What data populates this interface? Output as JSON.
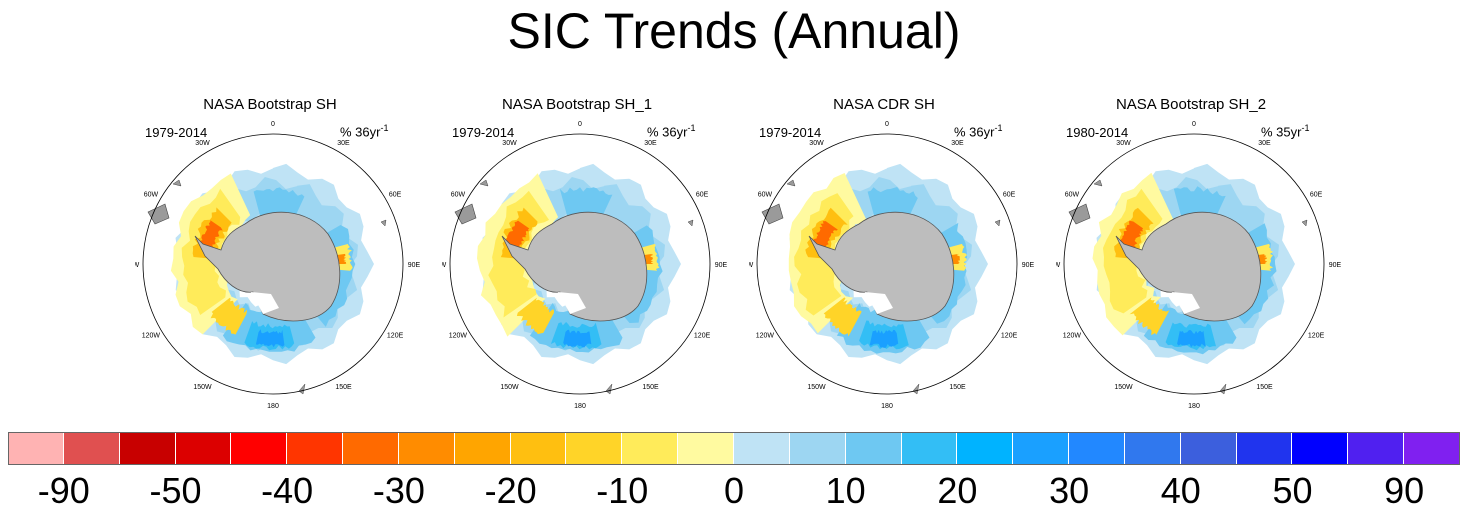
{
  "title": "SIC Trends (Annual)",
  "chart_data": {
    "type": "heatmap",
    "title": "SIC Trends (Annual)",
    "projection": "South polar stereographic",
    "panels": [
      {
        "title": "NASA Bootstrap SH",
        "period": "1979-2014",
        "units_prefix": "% 36yr",
        "units_exp": "-1"
      },
      {
        "title": "NASA Bootstrap SH_1",
        "period": "1979-2014",
        "units_prefix": "% 36yr",
        "units_exp": "-1"
      },
      {
        "title": "NASA CDR SH",
        "period": "1979-2014",
        "units_prefix": "% 36yr",
        "units_exp": "-1"
      },
      {
        "title": "NASA Bootstrap SH_2",
        "period": "1980-2014",
        "units_prefix": "% 35yr",
        "units_exp": "-1"
      }
    ],
    "longitude_labels": [
      "0",
      "30E",
      "60E",
      "90E",
      "120E",
      "150E",
      "180",
      "150W",
      "120W",
      "90W",
      "60W",
      "30W"
    ],
    "colorbar": {
      "colors": [
        "#ffb3b3",
        "#e05050",
        "#c80000",
        "#dc0000",
        "#ff0000",
        "#ff3500",
        "#ff6a00",
        "#ff8c00",
        "#ffa500",
        "#ffbf10",
        "#ffd428",
        "#ffeb5a",
        "#fffaa0",
        "#bfe3f5",
        "#9dd6f2",
        "#6ec8f2",
        "#33bef5",
        "#00b3ff",
        "#1aa0ff",
        "#2288ff",
        "#3078ee",
        "#3c5fdd",
        "#2034ee",
        "#0000ff",
        "#5020f0",
        "#8020f0"
      ],
      "labels": [
        "-90",
        "-50",
        "-40",
        "-30",
        "-20",
        "-10",
        "0",
        "10",
        "20",
        "30",
        "40",
        "50",
        "90"
      ],
      "range": [
        -90,
        90
      ]
    }
  }
}
